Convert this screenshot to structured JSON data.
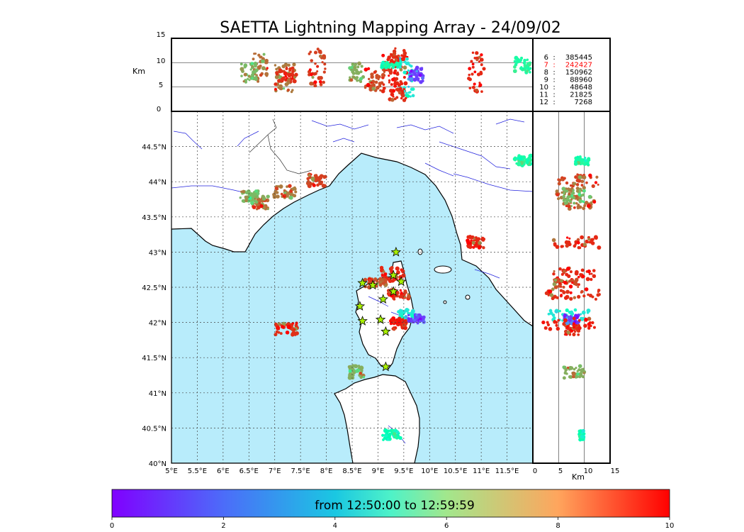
{
  "chart_data": {
    "type": "scatter",
    "title": "SAETTA Lightning Mapping Array - 24/09/02",
    "map": {
      "lon_range": [
        5,
        12
      ],
      "lat_range": [
        40,
        45
      ],
      "lon_ticks": [
        "5°E",
        "5.5°E",
        "6°E",
        "6.5°E",
        "7°E",
        "7.5°E",
        "8°E",
        "8.5°E",
        "9°E",
        "9.5°E",
        "10°E",
        "10.5°E",
        "11°E",
        "11.5°E"
      ],
      "lat_ticks": [
        "40°N",
        "40.5°N",
        "41°N",
        "41.5°N",
        "42°N",
        "42.5°N",
        "43°N",
        "43.5°N",
        "44°N",
        "44.5°N"
      ],
      "grid": true,
      "sea_color": "#b8ecfb",
      "land_color": "#ffffff",
      "river_color": "#0000dd"
    },
    "altitude_top": {
      "ylabel": "Km",
      "y_ticks": [
        "0",
        "5",
        "10",
        "15"
      ],
      "y_range": [
        0,
        15
      ]
    },
    "altitude_side": {
      "xlabel": "Km",
      "x_ticks": [
        "0",
        "5",
        "10",
        "15"
      ],
      "x_range": [
        0,
        15
      ]
    },
    "station_counts": [
      {
        "station": "6",
        "count": "385445",
        "color": "#000000"
      },
      {
        "station": "7",
        "count": "242427",
        "color": "#ff0000"
      },
      {
        "station": "8",
        "count": "150962",
        "color": "#000000"
      },
      {
        "station": "9",
        "count": "88960",
        "color": "#000000"
      },
      {
        "station": "10",
        "count": "48648",
        "color": "#000000"
      },
      {
        "station": "11",
        "count": "21825",
        "color": "#000000"
      },
      {
        "station": "12",
        "count": "7268",
        "color": "#000000"
      }
    ],
    "stations": [
      {
        "lon": 9.35,
        "lat": 43.0
      },
      {
        "lon": 9.3,
        "lat": 42.67
      },
      {
        "lon": 8.7,
        "lat": 42.56
      },
      {
        "lon": 8.9,
        "lat": 42.53
      },
      {
        "lon": 9.45,
        "lat": 42.58
      },
      {
        "lon": 9.3,
        "lat": 42.44
      },
      {
        "lon": 9.1,
        "lat": 42.33
      },
      {
        "lon": 8.65,
        "lat": 42.23
      },
      {
        "lon": 8.7,
        "lat": 42.02
      },
      {
        "lon": 9.05,
        "lat": 42.04
      },
      {
        "lon": 9.15,
        "lat": 41.87
      },
      {
        "lon": 9.15,
        "lat": 41.37
      }
    ],
    "clusters": [
      {
        "lon": 7.82,
        "lat": 44.02,
        "alt": [
          5,
          13
        ],
        "t": 9.2
      },
      {
        "lon": 6.72,
        "lat": 43.7,
        "alt": [
          6,
          12
        ],
        "t": 8.6
      },
      {
        "lon": 7.2,
        "lat": 43.85,
        "alt": [
          4,
          10
        ],
        "t": 8.4
      },
      {
        "lon": 6.5,
        "lat": 43.78,
        "alt": [
          6,
          10
        ],
        "t": 7.4
      },
      {
        "lon": 7.22,
        "lat": 41.91,
        "alt": [
          6,
          9
        ],
        "t": 9.4
      },
      {
        "lon": 10.9,
        "lat": 43.14,
        "alt": [
          4,
          13
        ],
        "t": 9.5
      },
      {
        "lon": 9.4,
        "lat": 42.4,
        "alt": [
          2,
          13
        ],
        "t": 9.4
      },
      {
        "lon": 9.28,
        "lat": 42.68,
        "alt": [
          4,
          12
        ],
        "t": 9.5
      },
      {
        "lon": 9.55,
        "lat": 42.1,
        "alt": [
          3,
          11
        ],
        "t": 3.6
      },
      {
        "lon": 9.75,
        "lat": 42.05,
        "alt": [
          6,
          9
        ],
        "t": 0.8
      },
      {
        "lon": 9.4,
        "lat": 41.98,
        "alt": [
          2,
          12
        ],
        "t": 9.6
      },
      {
        "lon": 8.58,
        "lat": 41.3,
        "alt": [
          6,
          10
        ],
        "t": 7.6
      },
      {
        "lon": 8.95,
        "lat": 42.56,
        "alt": [
          4,
          9
        ],
        "t": 9.0
      },
      {
        "lon": 9.25,
        "lat": 40.4,
        "alt": [
          9,
          10
        ],
        "t": 5.0
      },
      {
        "lon": 11.8,
        "lat": 44.3,
        "alt": [
          8,
          11
        ],
        "t": 5.5
      }
    ],
    "colorbar": {
      "label": "from 12:50:00 to 12:59:59",
      "range": [
        0,
        10
      ],
      "ticks": [
        "0",
        "2",
        "4",
        "6",
        "8",
        "10"
      ]
    }
  }
}
